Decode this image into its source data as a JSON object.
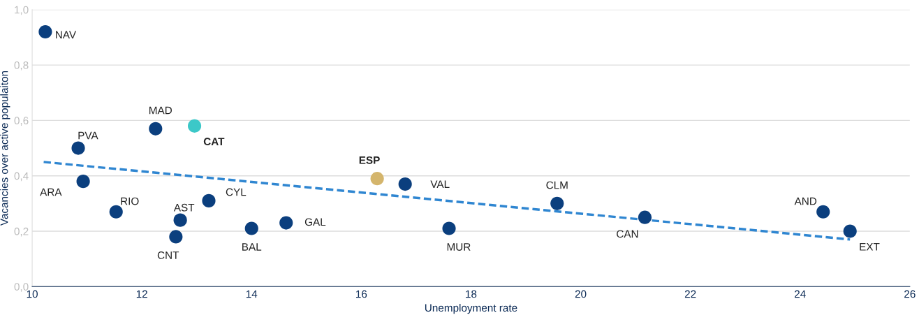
{
  "chart_data": {
    "type": "scatter",
    "xlabel": "Unemployment rate",
    "ylabel": "Vacancies over active populaiton",
    "xlim": [
      10,
      26
    ],
    "xticks": [
      10,
      12,
      14,
      16,
      18,
      20,
      22,
      24,
      26
    ],
    "ylim": [
      0,
      1.0
    ],
    "yticks": [
      {
        "value": 0,
        "label": "0,0"
      },
      {
        "value": 0.2,
        "label": "0,2"
      },
      {
        "value": 0.4,
        "label": "0,4"
      },
      {
        "value": 0.6,
        "label": "0,6"
      },
      {
        "value": 0.8,
        "label": "0,8"
      },
      {
        "value": 1.0,
        "label": "1,0"
      }
    ],
    "grid": "y",
    "legend": false,
    "marker": "circle",
    "series": [
      {
        "name": "NAV",
        "color": "#0b3f7e",
        "x": [
          10.24
        ],
        "values": [
          0.92
        ]
      },
      {
        "name": "PVA",
        "color": "#0b3f7e",
        "x": [
          10.84
        ],
        "values": [
          0.5
        ]
      },
      {
        "name": "ARA",
        "color": "#0b3f7e",
        "x": [
          10.93
        ],
        "values": [
          0.38
        ]
      },
      {
        "name": "RIO",
        "color": "#0b3f7e",
        "x": [
          11.53
        ],
        "values": [
          0.27
        ]
      },
      {
        "name": "MAD",
        "color": "#0b3f7e",
        "x": [
          12.25
        ],
        "values": [
          0.57
        ]
      },
      {
        "name": "CAT",
        "color": "#3cc8c8",
        "x": [
          12.96
        ],
        "values": [
          0.58
        ]
      },
      {
        "name": "AST",
        "color": "#0b3f7e",
        "x": [
          12.7
        ],
        "values": [
          0.24
        ]
      },
      {
        "name": "CNT",
        "color": "#0b3f7e",
        "x": [
          12.62
        ],
        "values": [
          0.18
        ]
      },
      {
        "name": "CYL",
        "color": "#0b3f7e",
        "x": [
          13.22
        ],
        "values": [
          0.31
        ]
      },
      {
        "name": "BAL",
        "color": "#0b3f7e",
        "x": [
          14.0
        ],
        "values": [
          0.21
        ]
      },
      {
        "name": "GAL",
        "color": "#0b3f7e",
        "x": [
          14.63
        ],
        "values": [
          0.23
        ]
      },
      {
        "name": "ESP",
        "color": "#d4b56c",
        "x": [
          16.29
        ],
        "values": [
          0.39
        ]
      },
      {
        "name": "VAL",
        "color": "#0b3f7e",
        "x": [
          16.8
        ],
        "values": [
          0.37
        ]
      },
      {
        "name": "MUR",
        "color": "#0b3f7e",
        "x": [
          17.6
        ],
        "values": [
          0.21
        ]
      },
      {
        "name": "CLM",
        "color": "#0b3f7e",
        "x": [
          19.57
        ],
        "values": [
          0.3
        ]
      },
      {
        "name": "CAN",
        "color": "#0b3f7e",
        "x": [
          21.17
        ],
        "values": [
          0.25
        ]
      },
      {
        "name": "AND",
        "color": "#0b3f7e",
        "x": [
          24.42
        ],
        "values": [
          0.27
        ]
      },
      {
        "name": "EXT",
        "color": "#0b3f7e",
        "x": [
          24.91
        ],
        "values": [
          0.2
        ]
      },
      {
        "type": "line",
        "line_style": "dashed",
        "marker": "none",
        "color": "#2f86d1",
        "x": [
          10.21,
          24.91
        ],
        "values": [
          0.45,
          0.17
        ]
      }
    ]
  }
}
